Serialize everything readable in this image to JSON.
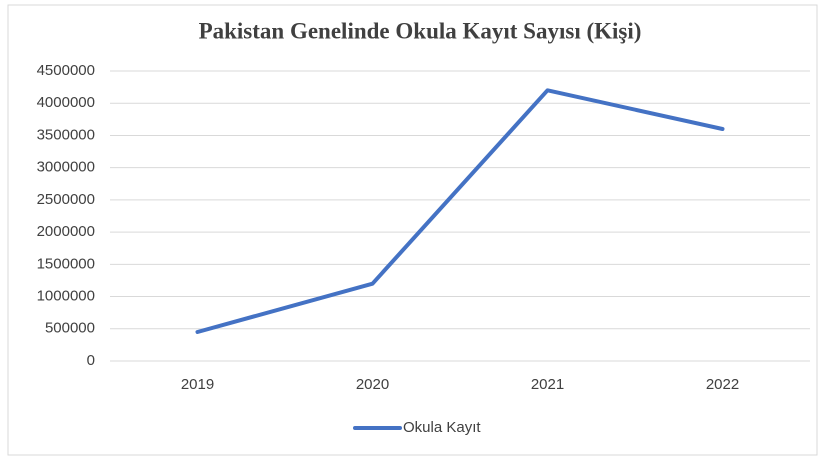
{
  "chart_data": {
    "type": "line",
    "title": "Pakistan Genelinde Okula Kayıt Sayısı (Kişi)",
    "categories": [
      "2019",
      "2020",
      "2021",
      "2022"
    ],
    "series": [
      {
        "name": "Okula Kayıt",
        "color": "#4472c4",
        "values": [
          450000,
          1200000,
          4200000,
          3600000
        ]
      }
    ],
    "ylim": [
      0,
      4500000
    ],
    "yticks": [
      0,
      500000,
      1000000,
      1500000,
      2000000,
      2500000,
      3000000,
      3500000,
      4000000,
      4500000
    ],
    "grid": true,
    "legend": "bottom"
  }
}
